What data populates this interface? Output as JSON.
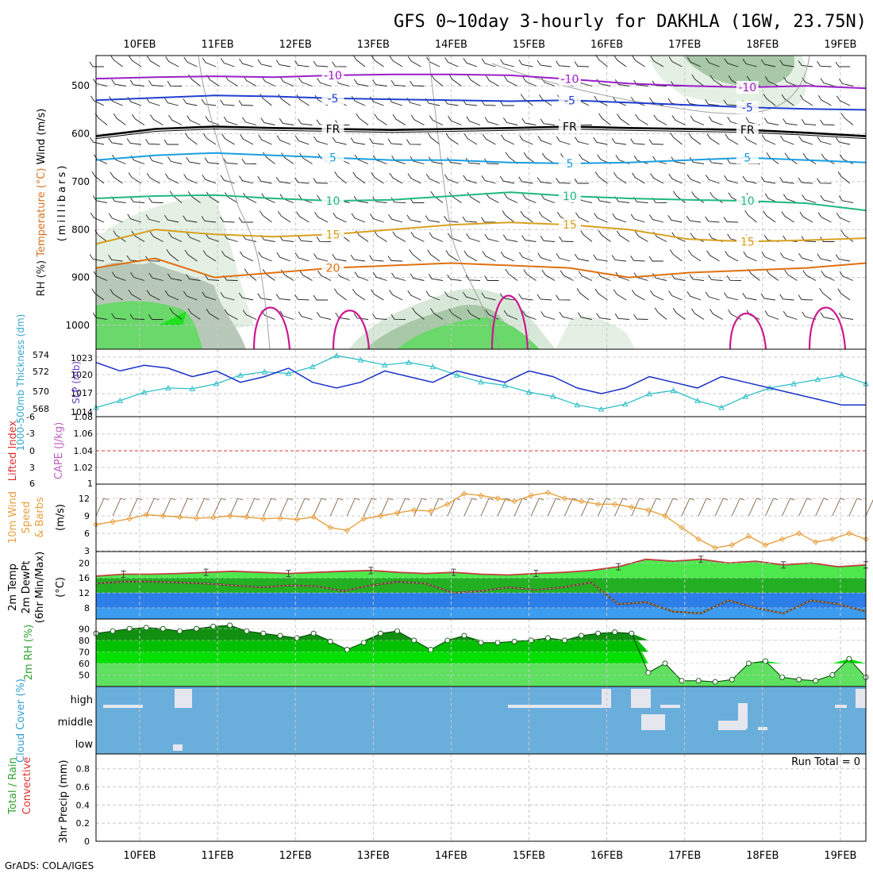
{
  "chart_data": {
    "type": "meteogram",
    "title": "GFS 0~10day 3-hourly for DAKHLA (16W, 23.75N)",
    "footer": "GrADS: COLA/IGES",
    "dates": [
      "10FEB",
      "11FEB",
      "12FEB",
      "13FEB",
      "14FEB",
      "15FEB",
      "16FEB",
      "17FEB",
      "18FEB",
      "19FEB"
    ],
    "panels": [
      {
        "id": "upper",
        "ylabel_parts": [
          "RH (%)",
          "Temperature (°C)",
          "Wind (m/s)"
        ],
        "ylabel_units": "(millibars)",
        "yticks": [
          "500",
          "600",
          "700",
          "800",
          "900",
          "1000"
        ],
        "contours": [
          {
            "label": "-10",
            "color": "#9b1fc8",
            "values": [
              485,
              482,
              480,
              482,
              478,
              476,
              476,
              478,
              486,
              495,
              500,
              503,
              500,
              505
            ]
          },
          {
            "label": "-5",
            "color": "#2040d0",
            "values": [
              530,
              525,
              520,
              522,
              526,
              528,
              530,
              532,
              530,
              535,
              540,
              545,
              548,
              550
            ]
          },
          {
            "label": "FR",
            "color": "#000000",
            "values": [
              605,
              590,
              585,
              588,
              590,
              592,
              590,
              588,
              585,
              588,
              590,
              592,
              598,
              605
            ]
          },
          {
            "label": "5",
            "color": "#1a9ee0",
            "values": [
              655,
              645,
              640,
              645,
              650,
              655,
              655,
              660,
              662,
              660,
              655,
              650,
              655,
              660
            ]
          },
          {
            "label": "10",
            "color": "#20b880",
            "values": [
              735,
              730,
              728,
              735,
              740,
              738,
              730,
              722,
              730,
              735,
              738,
              740,
              745,
              760
            ]
          },
          {
            "label": "15",
            "color": "#d8a020",
            "values": [
              830,
              800,
              810,
              815,
              810,
              800,
              790,
              785,
              790,
              800,
              820,
              825,
              822,
              818
            ]
          },
          {
            "label": "20",
            "color": "#e07010",
            "values": [
              880,
              860,
              900,
              890,
              880,
              875,
              870,
              875,
              880,
              900,
              890,
              885,
              880,
              870
            ]
          }
        ]
      },
      {
        "id": "slp_thickness",
        "ylabel_left": "1000-500mb Thickness (dm)",
        "ylabel_right": "SLP (mb)",
        "yticks_left": [
          "568",
          "570",
          "572",
          "574"
        ],
        "yticks_right": [
          "1014",
          "1017",
          "1020",
          "1023"
        ],
        "slp": [
          1022.5,
          1021,
          1022,
          1021.5,
          1020,
          1021,
          1019,
          1020,
          1021.5,
          1019,
          1018,
          1019,
          1021,
          1020,
          1019,
          1021,
          1020,
          1019,
          1021,
          1020,
          1018,
          1017,
          1018,
          1020,
          1019,
          1018,
          1020,
          1019,
          1018,
          1017,
          1016,
          1015,
          1015
        ],
        "thickness": [
          568.2,
          569,
          570,
          570.5,
          570.4,
          571,
          572,
          572.4,
          572.2,
          573,
          574.3,
          573.8,
          573.2,
          573.5,
          573,
          572,
          571.2,
          570.8,
          570,
          569.5,
          568.5,
          568,
          568.6,
          569.8,
          570.2,
          569,
          568.2,
          569.5,
          570.5,
          571,
          571.5,
          572,
          571
        ],
        "slp_color": "#1a30c8",
        "thickness_color": "#30c0c8"
      },
      {
        "id": "li_cape",
        "ylabel_left": "Lifted Index",
        "ylabel_right": "CAPE (J/kg)",
        "yticks_left": [
          "-6",
          "-3",
          "0",
          "3",
          "6"
        ],
        "yticks_right": [
          "1",
          "1.02",
          "1.04",
          "1.06",
          "1.08"
        ],
        "lifted_index_line_value": 0,
        "li_color": "#e03030"
      },
      {
        "id": "wind10m",
        "ylabel": "10m Wind Speed & Barbs (m/s)",
        "ylabel_parts": [
          "10m Wind",
          "Speed",
          "& Barbs"
        ],
        "ylabel_units": "(m/s)",
        "yticks": [
          "3",
          "6",
          "9",
          "12"
        ],
        "speed": [
          7.5,
          8,
          8.5,
          9.2,
          9,
          8.8,
          8.6,
          8.7,
          9,
          8.8,
          8.5,
          8.6,
          8.4,
          8.8,
          7,
          6.5,
          8.5,
          9,
          9.5,
          10,
          9.8,
          11,
          12.8,
          12.5,
          12,
          11.5,
          12.5,
          13,
          12,
          11.5,
          11,
          11,
          10.5,
          10,
          9,
          7,
          5,
          3.5,
          4,
          5.5,
          4,
          5,
          6,
          4.5,
          5,
          6,
          5
        ],
        "color": "#e8a040"
      },
      {
        "id": "temp2m",
        "ylabel": "2m Temp 2m DewPt (6hr Min/Max) (°C)",
        "ylabel_parts": [
          "2m Temp",
          "2m DewPt",
          "(6hr Min/Max)"
        ],
        "ylabel_units": "(°C)",
        "yticks": [
          "8",
          "12",
          "16",
          "20"
        ],
        "temp": [
          16.5,
          17,
          17,
          17.2,
          17.5,
          17.8,
          17.5,
          17.2,
          17.5,
          17.8,
          18,
          17.5,
          17.2,
          17.5,
          17,
          16.8,
          17.2,
          17.5,
          18,
          19,
          21,
          20.5,
          21,
          20,
          20.5,
          19.5,
          20,
          19,
          19.5
        ],
        "dewpoint": [
          14.5,
          15,
          15,
          14.8,
          14.5,
          14,
          13.5,
          14,
          13.8,
          12.5,
          14,
          15,
          14.5,
          12,
          12.5,
          13.5,
          12.8,
          13.5,
          14.8,
          9,
          9.5,
          7,
          6.5,
          10,
          8,
          6.5,
          10,
          9,
          7
        ],
        "temp_color": "#c04040",
        "dewpoint_color": "#b0b0b0"
      },
      {
        "id": "rh2m",
        "ylabel": "2m RH (%)",
        "yticks": [
          "50",
          "60",
          "70",
          "80",
          "90"
        ],
        "rh": [
          86,
          88,
          90,
          91,
          90,
          88,
          90,
          92,
          93,
          88,
          86,
          84,
          82,
          86,
          79,
          72,
          78,
          86,
          88,
          80,
          72,
          80,
          84,
          78,
          78,
          79,
          80,
          82,
          80,
          84,
          86,
          87,
          86,
          52,
          60,
          45,
          45,
          44,
          46,
          60,
          62,
          48,
          46,
          45,
          50,
          64,
          48
        ],
        "color": "#30c030"
      },
      {
        "id": "cloud",
        "ylabel": "Cloud Cover (%)",
        "levels": [
          "high",
          "middle",
          "low"
        ],
        "background_color": "#6aaedc",
        "gap_color": "#e6e6ee"
      },
      {
        "id": "precip",
        "ylabel_parts": [
          "Total / Rain",
          "Convective"
        ],
        "ylabel_units": "3hr Precip (mm)",
        "yticks": [
          "0",
          "0.2",
          "0.4",
          "0.6",
          "0.8"
        ],
        "run_total": "Run Total = 0"
      }
    ]
  }
}
